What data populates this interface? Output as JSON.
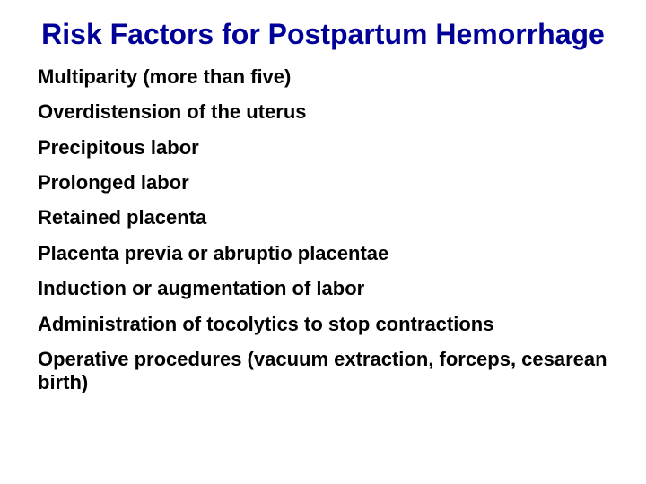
{
  "title_color": "#000099",
  "title_fontsize": 32,
  "item_color": "#000000",
  "item_fontsize": 22,
  "background_color": "#ffffff",
  "title": "Risk Factors for Postpartum Hemorrhage",
  "items": [
    "Multiparity (more than five)",
    "Overdistension of the uterus",
    "Precipitous labor",
    "Prolonged labor",
    "Retained placenta",
    "Placenta previa or abruptio placentae",
    "Induction or augmentation of labor",
    "Administration of tocolytics to stop contractions",
    "Operative procedures (vacuum extraction, forceps, cesarean birth)"
  ]
}
